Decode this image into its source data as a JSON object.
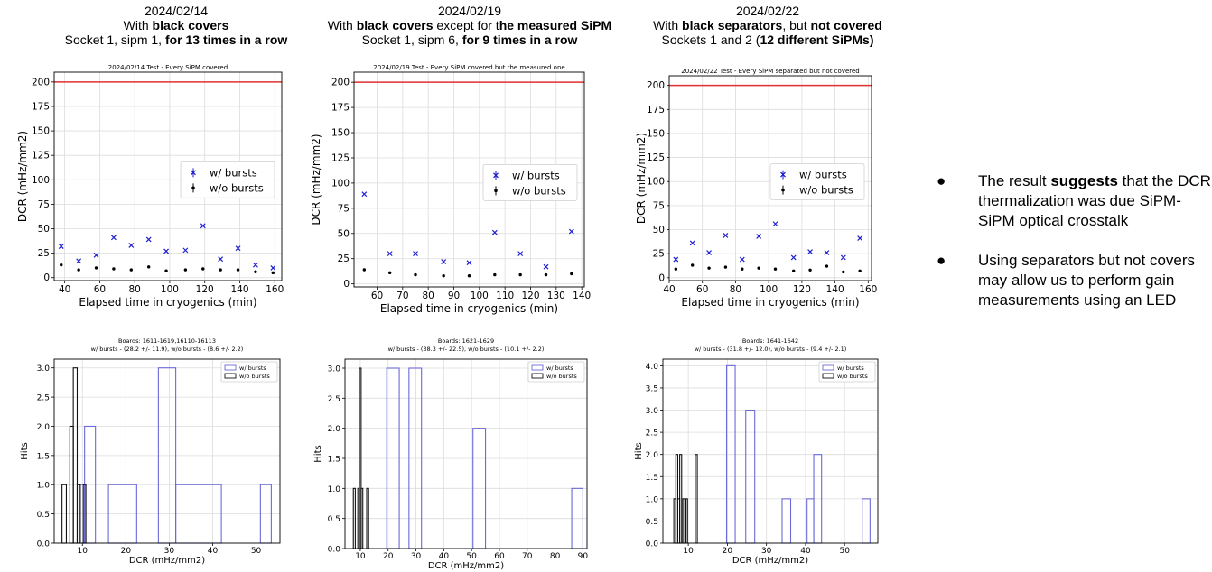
{
  "columns": [
    {
      "date": "2024/02/14",
      "line2": [
        {
          "t": "With ",
          "b": false
        },
        {
          "t": "black covers",
          "b": true
        }
      ],
      "line3": [
        {
          "t": "Socket 1, sipm 1, ",
          "b": false
        },
        {
          "t": "for 13 times in a row",
          "b": true
        }
      ]
    },
    {
      "date": "2024/02/19",
      "line2": [
        {
          "t": "With ",
          "b": false
        },
        {
          "t": "black covers",
          "b": true
        },
        {
          "t": " except for t",
          "b": false
        },
        {
          "t": "he measured SiPM",
          "b": true
        }
      ],
      "line3": [
        {
          "t": "Socket 1, sipm 6, ",
          "b": false
        },
        {
          "t": "for 9 times in a row",
          "b": true
        }
      ]
    },
    {
      "date": "2024/02/22",
      "line2": [
        {
          "t": "With ",
          "b": false
        },
        {
          "t": "black separators",
          "b": true
        },
        {
          "t": ", but ",
          "b": false
        },
        {
          "t": "not covered",
          "b": true
        }
      ],
      "line3": [
        {
          "t": "Sockets 1 and 2 (",
          "b": false
        },
        {
          "t": "12 different SiPMs)",
          "b": true
        }
      ]
    }
  ],
  "bullets": [
    [
      {
        "t": "The result ",
        "b": false
      },
      {
        "t": "suggests",
        "b": true
      },
      {
        "t": " that the DCR thermalization was due SiPM-SiPM optical crosstalk",
        "b": false
      }
    ],
    [
      {
        "t": "Using separators but not covers may allow us to perform gain measurements using an LED",
        "b": false
      }
    ]
  ],
  "colors": {
    "with_bursts": "#1f1fd0",
    "without_bursts": "#000000",
    "threshold": "#e03030",
    "hist_with": "#6a6ad8",
    "hist_without": "#111111"
  },
  "chart_data": [
    {
      "type": "scatter",
      "title": "2024/02/14 Test - Every SiPM covered",
      "xlabel": "Elapsed time in cryogenics (min)",
      "ylabel": "DCR (mHz/mm2)",
      "xlim": [
        34,
        164
      ],
      "ylim": [
        -3,
        210
      ],
      "xticks": [
        40,
        60,
        80,
        100,
        120,
        140,
        160
      ],
      "yticks": [
        0,
        25,
        50,
        75,
        100,
        125,
        150,
        175,
        200
      ],
      "threshold": 200,
      "grid": true,
      "legend_position": "center-right",
      "series": [
        {
          "name": "w/ bursts",
          "marker": "x",
          "x": [
            38,
            48,
            58,
            68,
            78,
            88,
            98,
            109,
            119,
            129,
            139,
            149,
            159
          ],
          "y": [
            32,
            17,
            23,
            41,
            33,
            39,
            27,
            28,
            53,
            19,
            30,
            13,
            10
          ]
        },
        {
          "name": "w/o bursts",
          "marker": "dot",
          "x": [
            38,
            48,
            58,
            68,
            78,
            88,
            98,
            109,
            119,
            129,
            139,
            149,
            159
          ],
          "y": [
            13,
            8,
            10,
            9,
            8,
            11,
            7,
            8,
            9,
            8,
            8,
            6,
            5
          ]
        }
      ]
    },
    {
      "type": "scatter",
      "title": "2024/02/19 Test - Every SiPM covered but the measured one",
      "xlabel": "Elapsed time in cryogenics (min)",
      "ylabel": "DCR (mHz/mm2)",
      "xlim": [
        51,
        141
      ],
      "ylim": [
        -3,
        210
      ],
      "xticks": [
        60,
        70,
        80,
        90,
        100,
        110,
        120,
        130,
        140
      ],
      "yticks": [
        0,
        25,
        50,
        75,
        100,
        125,
        150,
        175,
        200
      ],
      "threshold": 200,
      "grid": true,
      "legend_position": "center-right",
      "series": [
        {
          "name": "w/ bursts",
          "marker": "x",
          "x": [
            55,
            65,
            75,
            86,
            96,
            106,
            116,
            126,
            136
          ],
          "y": [
            89,
            30,
            30,
            22,
            21,
            51,
            30,
            17,
            52
          ]
        },
        {
          "name": "w/o bursts",
          "marker": "dot",
          "x": [
            55,
            65,
            75,
            86,
            96,
            106,
            116,
            126,
            136
          ],
          "y": [
            14,
            11,
            9,
            8,
            8,
            9,
            9,
            9,
            10
          ]
        }
      ]
    },
    {
      "type": "scatter",
      "title": "2024/02/22 Test - Every SiPM separated but not covered",
      "xlabel": "Elapsed time in cryogenics (min)",
      "ylabel": "DCR (mHz/mm2)",
      "xlim": [
        40,
        162
      ],
      "ylim": [
        -3,
        210
      ],
      "xticks": [
        40,
        60,
        80,
        100,
        120,
        140,
        160
      ],
      "yticks": [
        0,
        25,
        50,
        75,
        100,
        125,
        150,
        175,
        200
      ],
      "threshold": 200,
      "grid": true,
      "legend_position": "center-right",
      "series": [
        {
          "name": "w/ bursts",
          "marker": "x",
          "x": [
            44,
            54,
            64,
            74,
            84,
            94,
            104,
            115,
            125,
            135,
            145,
            155
          ],
          "y": [
            19,
            36,
            26,
            44,
            19,
            43,
            56,
            21,
            27,
            26,
            21,
            41
          ]
        },
        {
          "name": "w/o bursts",
          "marker": "dot",
          "x": [
            44,
            54,
            64,
            74,
            84,
            94,
            104,
            115,
            125,
            135,
            145,
            155
          ],
          "y": [
            9,
            13,
            10,
            11,
            9,
            10,
            9,
            7,
            8,
            12,
            6,
            7
          ]
        }
      ]
    },
    {
      "type": "histogram",
      "title": "Boards: 1611-1619,16110-16113",
      "subtitle": "w/ bursts - (28.2 +/- 11.9), w/o bursts - (8.6 +/- 2.2)",
      "xlabel": "DCR (mHz/mm2)",
      "ylabel": "Hits",
      "xlim": [
        3.5,
        55.5
      ],
      "ylim": [
        0,
        3.15
      ],
      "xticks": [
        10,
        20,
        30,
        40,
        50
      ],
      "yticks": [
        0.0,
        0.5,
        1.0,
        1.5,
        2.0,
        2.5,
        3.0
      ],
      "grid": true,
      "legend_position": "top-right",
      "series": [
        {
          "name": "w/ bursts",
          "bins": [
            [
              9.5,
              10.5,
              1
            ],
            [
              10.5,
              13,
              2
            ],
            [
              16,
              22.5,
              1
            ],
            [
              22.5,
              27.5,
              0
            ],
            [
              27.5,
              31.5,
              3
            ],
            [
              31.5,
              42,
              1
            ],
            [
              51,
              53.5,
              1
            ]
          ]
        },
        {
          "name": "w/o bursts",
          "bins": [
            [
              5.3,
              6.3,
              1
            ],
            [
              7.1,
              7.9,
              2
            ],
            [
              7.9,
              8.8,
              3
            ],
            [
              8.8,
              9.5,
              1
            ],
            [
              10.2,
              10.8,
              1
            ]
          ]
        }
      ]
    },
    {
      "type": "histogram",
      "title": "Boards: 1621-1629",
      "subtitle": "w/ bursts - (38.3 +/- 22.5), w/o bursts - (10.1 +/- 2.2)",
      "xlabel": "DCR (mHz/mm2)",
      "ylabel": "Hits",
      "xlim": [
        4.5,
        91.5
      ],
      "ylim": [
        0,
        3.15
      ],
      "xticks": [
        10,
        20,
        30,
        40,
        50,
        60,
        70,
        80,
        90
      ],
      "yticks": [
        0.0,
        0.5,
        1.0,
        1.5,
        2.0,
        2.5,
        3.0
      ],
      "grid": true,
      "legend_position": "top-right",
      "series": [
        {
          "name": "w/ bursts",
          "bins": [
            [
              19.5,
              24,
              3
            ],
            [
              27.5,
              32,
              3
            ],
            [
              50.5,
              55,
              2
            ],
            [
              86,
              90,
              1
            ]
          ]
        },
        {
          "name": "w/o bursts",
          "bins": [
            [
              7.5,
              8.2,
              1
            ],
            [
              9.1,
              9.7,
              1
            ],
            [
              9.7,
              10.3,
              3
            ],
            [
              10.3,
              10.9,
              1
            ],
            [
              12.3,
              13,
              1
            ]
          ]
        }
      ]
    },
    {
      "type": "histogram",
      "title": "Boards: 1641-1642",
      "subtitle": "w/ bursts - (31.8 +/- 12.0), w/o bursts - (9.4 +/- 2.1)",
      "xlabel": "DCR (mHz/mm2)",
      "ylabel": "Hits",
      "xlim": [
        3.5,
        58.5
      ],
      "ylim": [
        0,
        4.15
      ],
      "xticks": [
        10,
        20,
        30,
        40,
        50
      ],
      "yticks": [
        0.0,
        0.5,
        1.0,
        1.5,
        2.0,
        2.5,
        3.0,
        3.5,
        4.0
      ],
      "grid": true,
      "legend_position": "top-right",
      "series": [
        {
          "name": "w/ bursts",
          "bins": [
            [
              19.8,
              22,
              4
            ],
            [
              24.7,
              27,
              3
            ],
            [
              34,
              36.2,
              1
            ],
            [
              40.4,
              42.1,
              1
            ],
            [
              42.1,
              44.1,
              2
            ],
            [
              54.5,
              56.5,
              1
            ]
          ]
        },
        {
          "name": "w/o bursts",
          "bins": [
            [
              6.3,
              6.8,
              1
            ],
            [
              6.8,
              7.3,
              2
            ],
            [
              7.3,
              7.8,
              1
            ],
            [
              7.8,
              8.3,
              2
            ],
            [
              8.6,
              9.1,
              1
            ],
            [
              9.4,
              9.8,
              1
            ],
            [
              11.8,
              12.3,
              2
            ]
          ]
        }
      ]
    }
  ]
}
